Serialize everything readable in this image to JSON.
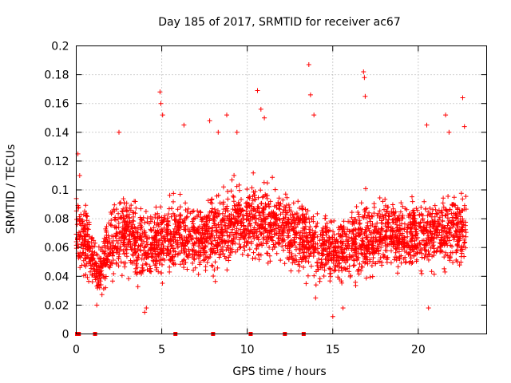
{
  "chart_data": {
    "type": "scatter",
    "title": "Day 185 of 2017, SRMTID for receiver ac67",
    "xlabel": "GPS time / hours",
    "ylabel": "SRMTID / TECUs",
    "xlim": [
      0,
      24
    ],
    "ylim": [
      0,
      0.2
    ],
    "x_ticks": [
      0,
      5,
      10,
      15,
      20
    ],
    "x_tick_labels": [
      "0",
      "5",
      "10",
      "15",
      "20"
    ],
    "y_ticks": [
      0,
      0.02,
      0.04,
      0.06,
      0.08,
      0.1,
      0.12,
      0.14,
      0.16,
      0.18,
      0.2
    ],
    "y_tick_labels": [
      "0",
      "0.02",
      "0.04",
      "0.06",
      "0.08",
      "0.1",
      "0.12",
      "0.14",
      "0.16",
      "0.18",
      "0.2"
    ],
    "grid": true,
    "marker": "+",
    "marker_color": "#ff0000",
    "series": [
      {
        "name": "SRMTID",
        "points_per_hour": 140,
        "trend": {
          "x": [
            0,
            0.5,
            1,
            1.3,
            2,
            3,
            4,
            5,
            6,
            7,
            8,
            9,
            10,
            11,
            12,
            13,
            13.5,
            14,
            15,
            16,
            17,
            18,
            19,
            20,
            21,
            22,
            22.8
          ],
          "median": [
            0.075,
            0.065,
            0.05,
            0.04,
            0.065,
            0.07,
            0.06,
            0.065,
            0.07,
            0.065,
            0.07,
            0.075,
            0.08,
            0.078,
            0.075,
            0.07,
            0.065,
            0.06,
            0.058,
            0.062,
            0.065,
            0.07,
            0.068,
            0.068,
            0.07,
            0.072,
            0.07
          ],
          "spread": [
            0.02,
            0.02,
            0.015,
            0.012,
            0.022,
            0.022,
            0.02,
            0.022,
            0.022,
            0.02,
            0.022,
            0.022,
            0.022,
            0.022,
            0.022,
            0.02,
            0.022,
            0.02,
            0.018,
            0.02,
            0.022,
            0.02,
            0.02,
            0.02,
            0.022,
            0.022,
            0.022
          ]
        },
        "outliers": [
          {
            "x": 0.1,
            "y": 0.125
          },
          {
            "x": 0.2,
            "y": 0.11
          },
          {
            "x": 1.2,
            "y": 0.02
          },
          {
            "x": 2.5,
            "y": 0.14
          },
          {
            "x": 4.0,
            "y": 0.015
          },
          {
            "x": 4.1,
            "y": 0.018
          },
          {
            "x": 4.9,
            "y": 0.168
          },
          {
            "x": 4.95,
            "y": 0.16
          },
          {
            "x": 5.05,
            "y": 0.152
          },
          {
            "x": 6.3,
            "y": 0.145
          },
          {
            "x": 7.8,
            "y": 0.148
          },
          {
            "x": 8.3,
            "y": 0.14
          },
          {
            "x": 8.8,
            "y": 0.152
          },
          {
            "x": 9.4,
            "y": 0.14
          },
          {
            "x": 10.6,
            "y": 0.169
          },
          {
            "x": 10.8,
            "y": 0.156
          },
          {
            "x": 11.0,
            "y": 0.15
          },
          {
            "x": 13.6,
            "y": 0.187
          },
          {
            "x": 13.7,
            "y": 0.166
          },
          {
            "x": 13.9,
            "y": 0.152
          },
          {
            "x": 15.0,
            "y": 0.012
          },
          {
            "x": 16.8,
            "y": 0.182
          },
          {
            "x": 16.85,
            "y": 0.178
          },
          {
            "x": 16.9,
            "y": 0.165
          },
          {
            "x": 20.5,
            "y": 0.145
          },
          {
            "x": 20.6,
            "y": 0.018
          },
          {
            "x": 21.6,
            "y": 0.152
          },
          {
            "x": 21.8,
            "y": 0.14
          },
          {
            "x": 22.6,
            "y": 0.164
          },
          {
            "x": 22.7,
            "y": 0.144
          },
          {
            "x": 14.0,
            "y": 0.025
          },
          {
            "x": 15.6,
            "y": 0.018
          }
        ],
        "zero_points": [
          0.05,
          0.15,
          1.1,
          5.8,
          8.0,
          10.2,
          12.2,
          13.3
        ]
      }
    ]
  }
}
